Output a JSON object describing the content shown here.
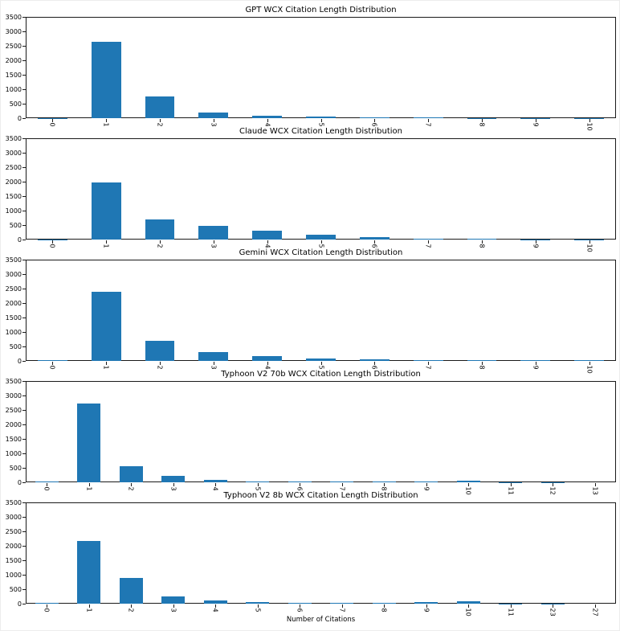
{
  "figure": {
    "xlabel": "Number of Citations",
    "bar_color": "#1f77b4",
    "axis_color": "#1a1a1a",
    "background": "#ffffff"
  },
  "chart_data": [
    {
      "id": "gpt",
      "type": "bar",
      "title": "GPT WCX Citation Length Distribution",
      "xlabel": "",
      "ylabel": "",
      "ylim": [
        0,
        3500
      ],
      "yticks": [
        0,
        500,
        1000,
        1500,
        2000,
        2500,
        3000,
        3500
      ],
      "grid": false,
      "legend": null,
      "categories": [
        "0",
        "1",
        "2",
        "3",
        "4",
        "5",
        "6",
        "7",
        "8",
        "9",
        "10"
      ],
      "values": [
        5,
        2650,
        740,
        195,
        95,
        45,
        25,
        30,
        8,
        5,
        3
      ]
    },
    {
      "id": "claude",
      "type": "bar",
      "title": "Claude WCX Citation Length Distribution",
      "xlabel": "",
      "ylabel": "",
      "ylim": [
        0,
        3500
      ],
      "yticks": [
        0,
        500,
        1000,
        1500,
        2000,
        2500,
        3000,
        3500
      ],
      "grid": false,
      "legend": null,
      "categories": [
        "0",
        "1",
        "2",
        "3",
        "4",
        "5",
        "6",
        "7",
        "8",
        "9",
        "10"
      ],
      "values": [
        3,
        1980,
        700,
        465,
        305,
        180,
        70,
        30,
        30,
        8,
        5
      ]
    },
    {
      "id": "gemini",
      "type": "bar",
      "title": "Gemini WCX Citation Length Distribution",
      "xlabel": "",
      "ylabel": "",
      "ylim": [
        0,
        3500
      ],
      "yticks": [
        0,
        500,
        1000,
        1500,
        2000,
        2500,
        3000,
        3500
      ],
      "grid": false,
      "legend": null,
      "categories": [
        "0",
        "1",
        "2",
        "3",
        "4",
        "5",
        "6",
        "7",
        "8",
        "9",
        "10"
      ],
      "values": [
        30,
        2380,
        700,
        300,
        165,
        90,
        50,
        25,
        25,
        25,
        25
      ]
    },
    {
      "id": "typhoon-v2-70b",
      "type": "bar",
      "title": "Typhoon V2 70b WCX Citation Length Distribution",
      "xlabel": "",
      "ylabel": "",
      "ylim": [
        0,
        3500
      ],
      "yticks": [
        0,
        500,
        1000,
        1500,
        2000,
        2500,
        3000,
        3500
      ],
      "grid": false,
      "legend": null,
      "categories": [
        "0",
        "1",
        "2",
        "3",
        "4",
        "5",
        "6",
        "7",
        "8",
        "9",
        "10",
        "11",
        "12",
        "13"
      ],
      "values": [
        40,
        2720,
        550,
        210,
        75,
        40,
        15,
        15,
        15,
        15,
        50,
        5,
        3,
        2
      ]
    },
    {
      "id": "typhoon-v2-8b",
      "type": "bar",
      "title": "Typhoon V2 8b WCX Citation Length Distribution",
      "xlabel": "Number of Citations",
      "ylabel": "",
      "ylim": [
        0,
        3500
      ],
      "yticks": [
        0,
        500,
        1000,
        1500,
        2000,
        2500,
        3000,
        3500
      ],
      "grid": false,
      "legend": null,
      "categories": [
        "0",
        "1",
        "2",
        "3",
        "4",
        "5",
        "6",
        "7",
        "8",
        "9",
        "10",
        "11",
        "23",
        "27"
      ],
      "values": [
        40,
        2180,
        900,
        245,
        110,
        55,
        40,
        40,
        40,
        45,
        85,
        8,
        3,
        2
      ]
    }
  ]
}
